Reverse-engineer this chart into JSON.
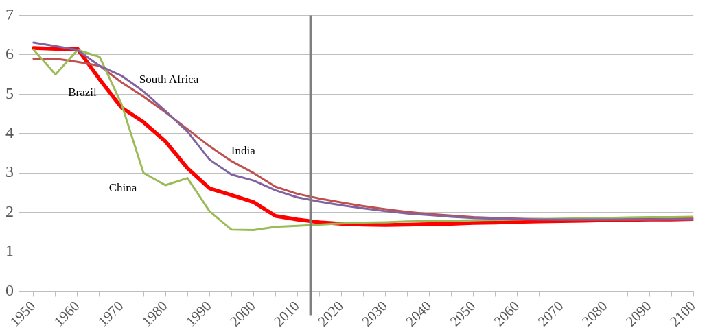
{
  "chart_data": {
    "type": "line",
    "x": [
      1950,
      1955,
      1960,
      1965,
      1970,
      1975,
      1980,
      1985,
      1990,
      1995,
      2000,
      2005,
      2010,
      2015,
      2020,
      2025,
      2030,
      2035,
      2040,
      2045,
      2050,
      2055,
      2060,
      2065,
      2070,
      2075,
      2080,
      2085,
      2090,
      2095,
      2100
    ],
    "series": [
      {
        "name": "Brazil",
        "color": "#ff0000",
        "values": [
          6.17,
          6.15,
          6.15,
          5.38,
          4.66,
          4.29,
          3.8,
          3.12,
          2.61,
          2.44,
          2.26,
          1.91,
          1.82,
          1.75,
          1.71,
          1.69,
          1.68,
          1.69,
          1.7,
          1.71,
          1.73,
          1.74,
          1.76,
          1.77,
          1.78,
          1.79,
          1.8,
          1.81,
          1.82,
          1.82,
          1.83
        ]
      },
      {
        "name": "India",
        "color": "#c0504d",
        "values": [
          5.9,
          5.9,
          5.82,
          5.72,
          5.3,
          4.94,
          4.54,
          4.11,
          3.68,
          3.3,
          3.0,
          2.65,
          2.47,
          2.35,
          2.25,
          2.16,
          2.08,
          2.01,
          1.96,
          1.92,
          1.88,
          1.86,
          1.84,
          1.83,
          1.82,
          1.82,
          1.82,
          1.82,
          1.82,
          1.83,
          1.83
        ]
      },
      {
        "name": "China",
        "color": "#9bbb59",
        "values": [
          6.13,
          5.5,
          6.12,
          5.95,
          4.75,
          3.0,
          2.69,
          2.87,
          2.03,
          1.56,
          1.55,
          1.63,
          1.66,
          1.69,
          1.72,
          1.74,
          1.75,
          1.77,
          1.78,
          1.79,
          1.8,
          1.81,
          1.82,
          1.83,
          1.84,
          1.85,
          1.86,
          1.87,
          1.88,
          1.88,
          1.89
        ]
      },
      {
        "name": "South Africa",
        "color": "#8064a2",
        "values": [
          6.31,
          6.22,
          6.12,
          5.72,
          5.47,
          5.07,
          4.57,
          4.05,
          3.34,
          2.96,
          2.81,
          2.56,
          2.38,
          2.27,
          2.18,
          2.1,
          2.03,
          1.97,
          1.93,
          1.89,
          1.86,
          1.84,
          1.83,
          1.82,
          1.82,
          1.82,
          1.82,
          1.82,
          1.82,
          1.82,
          1.82
        ]
      }
    ],
    "ref_lines": [
      {
        "axis": "x",
        "value": 2013,
        "color": "#7f7f7f"
      }
    ],
    "xlim": [
      1948,
      2100
    ],
    "xticks": [
      1950,
      {
        "value": 1955,
        "label": null
      },
      1960,
      {
        "value": 1965,
        "label": null
      },
      1970,
      {
        "value": 1975,
        "label": null
      },
      1980,
      {
        "value": 1985,
        "label": null
      },
      1990,
      {
        "value": 1995,
        "label": null
      },
      2000,
      {
        "value": 2005,
        "label": null
      },
      2010,
      {
        "value": 2015,
        "label": null
      },
      2020,
      {
        "value": 2025,
        "label": null
      },
      2030,
      {
        "value": 2035,
        "label": null
      },
      2040,
      {
        "value": 2045,
        "label": null
      },
      2050,
      {
        "value": 2055,
        "label": null
      },
      2060,
      {
        "value": 2065,
        "label": null
      },
      2070,
      {
        "value": 2075,
        "label": null
      },
      2080,
      {
        "value": 2085,
        "label": null
      },
      2090,
      {
        "value": 2095,
        "label": null
      },
      2100
    ],
    "ylim": [
      0,
      7
    ],
    "yticks": [
      0,
      1,
      2,
      3,
      4,
      5,
      6,
      7
    ],
    "grid": "y",
    "legend": false,
    "marker": "none",
    "line_style": "solid"
  }
}
